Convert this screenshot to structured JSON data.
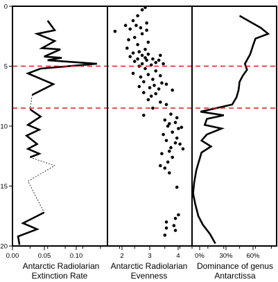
{
  "chart_data": [
    {
      "type": "line",
      "panel": "extinction",
      "xlabel": [
        "Antarctic Radiolarian",
        "Extinction Rate"
      ],
      "xticks": [
        "0.00",
        "0.05",
        "0.10"
      ],
      "xlim": [
        0.0,
        0.135
      ],
      "ylim": [
        0,
        20
      ],
      "yticks": [
        "0",
        "5",
        "10",
        "15",
        "20"
      ],
      "y_inverted": true,
      "series": [
        {
          "style": "solid",
          "points": [
            [
              0.05,
              1.2
            ],
            [
              0.06,
              2.0
            ],
            [
              0.035,
              2.3
            ],
            [
              0.06,
              2.9
            ],
            [
              0.042,
              3.5
            ],
            [
              0.068,
              3.6
            ],
            [
              0.045,
              4.2
            ],
            [
              0.07,
              4.3
            ],
            [
              0.05,
              4.5
            ],
            [
              0.12,
              4.8
            ],
            [
              0.04,
              5.2
            ],
            [
              0.022,
              5.6
            ],
            [
              0.058,
              6.5
            ],
            [
              0.028,
              7.4
            ]
          ]
        },
        {
          "style": "dotted",
          "points": [
            [
              0.028,
              7.4
            ],
            [
              0.025,
              8.6
            ]
          ]
        },
        {
          "style": "solid",
          "points": [
            [
              0.025,
              8.6
            ],
            [
              0.04,
              9.2
            ],
            [
              0.022,
              9.9
            ],
            [
              0.038,
              10.3
            ],
            [
              0.02,
              10.8
            ],
            [
              0.035,
              11.5
            ],
            [
              0.022,
              11.9
            ],
            [
              0.038,
              12.3
            ],
            [
              0.025,
              12.6
            ]
          ]
        },
        {
          "style": "dotted",
          "points": [
            [
              0.025,
              12.6
            ],
            [
              0.06,
              13.3
            ],
            [
              0.022,
              14.6
            ],
            [
              0.045,
              17.2
            ]
          ]
        },
        {
          "style": "solid",
          "points": [
            [
              0.045,
              17.2
            ],
            [
              0.015,
              18.1
            ],
            [
              0.035,
              18.6
            ],
            [
              0.008,
              19.2
            ],
            [
              0.01,
              19.9
            ]
          ]
        }
      ]
    },
    {
      "type": "scatter",
      "panel": "evenness",
      "xlabel": [
        "Antarctic Radiolarian",
        "Evenness"
      ],
      "xticks": [
        "2",
        "3",
        "4"
      ],
      "xlim": [
        1.6,
        4.4
      ],
      "ylim": [
        0,
        20
      ],
      "y_inverted": true,
      "points": [
        [
          2.85,
          0.1
        ],
        [
          2.75,
          0.3
        ],
        [
          2.6,
          0.8
        ],
        [
          2.45,
          1.2
        ],
        [
          2.9,
          1.4
        ],
        [
          2.55,
          1.6
        ],
        [
          2.2,
          1.6
        ],
        [
          2.7,
          1.8
        ],
        [
          2.35,
          1.9
        ],
        [
          2.9,
          2.0
        ],
        [
          1.85,
          2.1
        ],
        [
          2.75,
          2.3
        ],
        [
          2.5,
          2.6
        ],
        [
          2.3,
          2.8
        ],
        [
          2.95,
          3.0
        ],
        [
          2.6,
          3.2
        ],
        [
          2.25,
          3.5
        ],
        [
          2.85,
          3.6
        ],
        [
          2.65,
          3.8
        ],
        [
          2.45,
          3.9
        ],
        [
          2.95,
          4.0
        ],
        [
          2.75,
          4.1
        ],
        [
          3.35,
          4.1
        ],
        [
          2.35,
          4.2
        ],
        [
          2.85,
          4.3
        ],
        [
          3.1,
          4.4
        ],
        [
          2.6,
          4.4
        ],
        [
          3.3,
          4.5
        ],
        [
          2.9,
          4.5
        ],
        [
          2.5,
          4.6
        ],
        [
          3.2,
          4.7
        ],
        [
          2.75,
          4.8
        ],
        [
          3.45,
          4.8
        ],
        [
          3.05,
          4.9
        ],
        [
          2.65,
          5.0
        ],
        [
          2.85,
          5.2
        ],
        [
          3.2,
          5.4
        ],
        [
          2.45,
          5.6
        ],
        [
          2.95,
          5.7
        ],
        [
          3.35,
          5.8
        ],
        [
          2.7,
          5.9
        ],
        [
          3.1,
          6.1
        ],
        [
          2.8,
          6.3
        ],
        [
          3.4,
          6.4
        ],
        [
          3.55,
          6.5
        ],
        [
          3.15,
          6.6
        ],
        [
          2.65,
          6.7
        ],
        [
          3.0,
          6.8
        ],
        [
          3.3,
          6.9
        ],
        [
          3.75,
          7.0
        ],
        [
          2.8,
          7.2
        ],
        [
          3.2,
          7.3
        ],
        [
          3.05,
          7.5
        ],
        [
          2.95,
          7.8
        ],
        [
          3.35,
          8.0
        ],
        [
          3.55,
          8.2
        ],
        [
          3.1,
          8.5
        ],
        [
          3.7,
          9.0
        ],
        [
          2.8,
          9.1
        ],
        [
          3.9,
          9.3
        ],
        [
          3.5,
          9.5
        ],
        [
          3.65,
          9.8
        ],
        [
          3.85,
          9.7
        ],
        [
          3.6,
          10.0
        ],
        [
          4.05,
          10.1
        ],
        [
          3.95,
          10.2
        ],
        [
          3.75,
          10.5
        ],
        [
          3.45,
          10.7
        ],
        [
          3.9,
          11.0
        ],
        [
          3.55,
          11.2
        ],
        [
          3.85,
          11.4
        ],
        [
          4.0,
          11.5
        ],
        [
          3.7,
          11.8
        ],
        [
          4.1,
          11.9
        ],
        [
          3.65,
          12.1
        ],
        [
          3.4,
          12.3
        ],
        [
          3.75,
          12.6
        ],
        [
          3.6,
          13.0
        ],
        [
          3.35,
          13.3
        ],
        [
          3.5,
          13.5
        ],
        [
          3.65,
          13.9
        ],
        [
          3.9,
          15.1
        ],
        [
          3.95,
          17.4
        ],
        [
          3.85,
          17.7
        ],
        [
          3.55,
          18.0
        ],
        [
          3.8,
          18.3
        ],
        [
          3.55,
          18.5
        ],
        [
          3.85,
          18.7
        ],
        [
          3.5,
          19.1
        ]
      ]
    },
    {
      "type": "line",
      "panel": "dominance",
      "xlabel": [
        "Dominance of genus",
        "Antarctissa"
      ],
      "xticks": [
        "0%",
        "30%",
        "60%"
      ],
      "xlim": [
        0,
        80
      ],
      "ylim": [
        0,
        20
      ],
      "y_inverted": true,
      "series": [
        {
          "style": "solid",
          "points": [
            [
              45,
              0.8
            ],
            [
              55,
              1.3
            ],
            [
              65,
              1.8
            ],
            [
              72,
              2.3
            ],
            [
              60,
              2.7
            ],
            [
              58,
              3.2
            ],
            [
              55,
              4.0
            ],
            [
              50,
              4.8
            ],
            [
              52,
              5.3
            ],
            [
              48,
              5.8
            ],
            [
              45,
              6.3
            ],
            [
              44,
              7.0
            ],
            [
              42,
              7.6
            ],
            [
              38,
              8.2
            ],
            [
              8,
              8.8
            ],
            [
              30,
              9.1
            ],
            [
              14,
              9.4
            ],
            [
              12,
              9.9
            ],
            [
              28,
              10.2
            ],
            [
              14,
              10.7
            ],
            [
              9,
              11.2
            ],
            [
              18,
              11.7
            ],
            [
              9,
              12.2
            ],
            [
              6,
              13.1
            ],
            [
              4,
              13.7
            ],
            [
              2,
              14.7
            ],
            [
              1,
              15.6
            ],
            [
              3,
              16.5
            ],
            [
              6,
              17.5
            ],
            [
              10,
              18.2
            ],
            [
              17,
              19.0
            ],
            [
              22,
              19.8
            ]
          ]
        }
      ]
    }
  ],
  "reference_lines_depth": [
    5,
    8.5
  ],
  "colors": {
    "reference_line": "#e8141e",
    "series": "#000000"
  }
}
